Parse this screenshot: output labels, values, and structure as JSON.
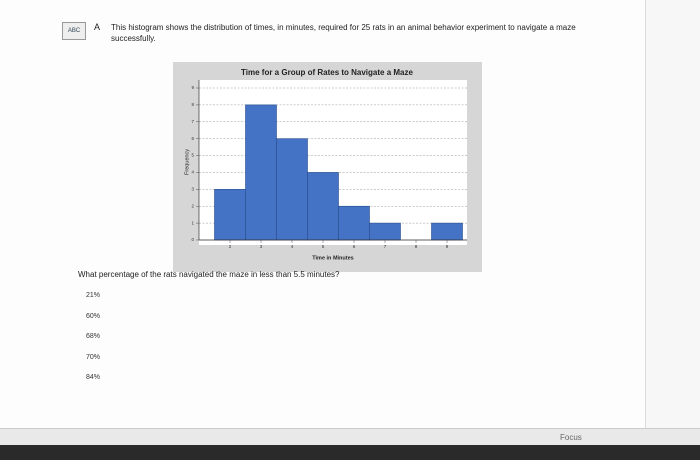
{
  "question_label": "A",
  "icon_label": "ABC",
  "prompt": "This histogram shows the distribution of times, in minutes, required for 25 rats in an animal behavior experiment to navigate a maze successfully.",
  "question": "What percentage of the rats navigated the maze in less than 5.5 minutes?",
  "options": [
    "21%",
    "60%",
    "68%",
    "70%",
    "84%"
  ],
  "taskbar_label": "Focus",
  "chart_data": {
    "type": "histogram",
    "title": "Time for a Group of Rates to Navigate a Maze",
    "x_label": "Time in Minutes",
    "y_label": "Frequency",
    "bins": [
      1.5,
      2.5,
      3.5,
      4.5,
      5.5,
      6.5,
      7.5,
      8.5,
      9.5
    ],
    "values": [
      3,
      8,
      6,
      4,
      2,
      1,
      0,
      1
    ],
    "color": "#4472c4",
    "xlim": [
      1,
      9.6
    ],
    "xticks": [
      2,
      3,
      4,
      5,
      6,
      7,
      8,
      9
    ],
    "ylim": [
      0,
      9
    ],
    "yticks": [
      0,
      1,
      2,
      3,
      4,
      5,
      6,
      7,
      8,
      9
    ],
    "grid": true
  }
}
